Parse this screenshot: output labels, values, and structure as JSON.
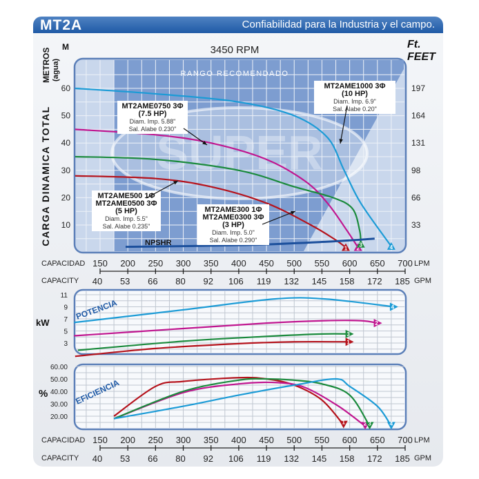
{
  "header": {
    "title": "MT2A",
    "slogan": "Confiabilidad para la Industria y el campo."
  },
  "colors": {
    "c1": "#b5121b",
    "c2": "#c0158f",
    "c3": "#1a8a3c",
    "c4": "#1b9bd6",
    "npshr": "#1b4f9c"
  },
  "chart_data": [
    {
      "type": "line",
      "title": "3450 RPM",
      "ylabel": "CARGA DINAMICA TOTAL",
      "ylabel_left_unit": "METROS (agua)",
      "ylabel_left_short": "M",
      "ylabel_right_unit": "Ft.",
      "ylabel_right_unit2": "FEET",
      "band_label": "RANGO RECOMENDADO",
      "watermark": "SUPER",
      "yticks": [
        10,
        20,
        30,
        40,
        50,
        60
      ],
      "yticks_ft": [
        33,
        66,
        98,
        131,
        164,
        197
      ],
      "ylim": [
        0,
        60
      ],
      "series": [
        {
          "id": "1",
          "color": "#b5121b",
          "points": [
            [
              105,
              28
            ],
            [
              250,
              27
            ],
            [
              350,
              24
            ],
            [
              450,
              18
            ],
            [
              530,
              10
            ],
            [
              575,
              4.5
            ],
            [
              593,
              1.8
            ]
          ]
        },
        {
          "id": "2",
          "color": "#c0158f",
          "points": [
            [
              105,
              45
            ],
            [
              250,
              43
            ],
            [
              350,
              40
            ],
            [
              450,
              34
            ],
            [
              520,
              26
            ],
            [
              560,
              18
            ],
            [
              595,
              8
            ],
            [
              615,
              1.8
            ]
          ]
        },
        {
          "id": "3",
          "color": "#1a8a3c",
          "points": [
            [
              105,
              35
            ],
            [
              250,
              34
            ],
            [
              400,
              30
            ],
            [
              500,
              24
            ],
            [
              570,
              20
            ],
            [
              605,
              16
            ],
            [
              618,
              8
            ],
            [
              620,
              3
            ]
          ]
        },
        {
          "id": "4",
          "color": "#1b9bd6",
          "points": [
            [
              105,
              60
            ],
            [
              250,
              58
            ],
            [
              400,
              55
            ],
            [
              500,
              50
            ],
            [
              560,
              42
            ],
            [
              590,
              30
            ],
            [
              620,
              18
            ],
            [
              675,
              2.2
            ]
          ]
        },
        {
          "id": "npshr",
          "label": "NPSHR",
          "color": "#1b4f9c",
          "points": [
            [
              196,
              2
            ],
            [
              400,
              2.6
            ],
            [
              550,
              3.8
            ],
            [
              645,
              5
            ]
          ]
        }
      ],
      "annotations": [
        {
          "lines": [
            "MT2AME1000 3Φ",
            "(10 HP)",
            "Diam. Imp. 6.9\"",
            "Sal. Alabe 0.20\""
          ]
        },
        {
          "lines": [
            "MT2AME0750 3Φ",
            "(7.5 HP)",
            "Diam. Imp. 5.88\"",
            "Sal. Alabe 0.230\""
          ]
        },
        {
          "lines": [
            "MT2AME500 1Φ",
            "MT2AME0500 3Φ",
            "(5 HP)",
            "Diam. Imp. 5.5\"",
            "Sal. Alabe 0.235\""
          ]
        },
        {
          "lines": [
            "MT2AME300 1Φ",
            "MT2AME0300 3Φ",
            "(3 HP)",
            "Diam. Imp. 5.0\"",
            "Sal. Alabe 0.290\""
          ]
        }
      ]
    },
    {
      "type": "line",
      "title": "POTENCIA",
      "ylabel": "kW",
      "yticks": [
        3,
        5,
        7,
        9,
        11
      ],
      "ylim": [
        0,
        11.5
      ],
      "series": [
        {
          "id": "1",
          "color": "#b5121b",
          "points": [
            [
              105,
              0.8
            ],
            [
              250,
              2.1
            ],
            [
              400,
              2.9
            ],
            [
              500,
              3.2
            ],
            [
              600,
              3.2
            ]
          ]
        },
        {
          "id": "2",
          "color": "#c0158f",
          "points": [
            [
              103,
              4.2
            ],
            [
              300,
              5.4
            ],
            [
              450,
              6.3
            ],
            [
              555,
              6.7
            ],
            [
              620,
              6.7
            ],
            [
              651,
              6.3
            ]
          ]
        },
        {
          "id": "3",
          "color": "#1a8a3c",
          "points": [
            [
              110,
              1.8
            ],
            [
              300,
              3.3
            ],
            [
              450,
              4.1
            ],
            [
              550,
              4.5
            ],
            [
              600,
              4.5
            ]
          ]
        },
        {
          "id": "4",
          "color": "#1b9bd6",
          "points": [
            [
              103,
              6.4
            ],
            [
              300,
              8.5
            ],
            [
              465,
              10.3
            ],
            [
              555,
              10.3
            ],
            [
              680,
              9
            ]
          ]
        }
      ]
    },
    {
      "type": "line",
      "title": "EFICIENCIA",
      "ylabel": "%",
      "yticks": [
        "20.00",
        "30.00",
        "40.00",
        "50.00",
        "60.00"
      ],
      "ylim": [
        10,
        62
      ],
      "series": [
        {
          "id": "1",
          "color": "#b5121b",
          "points": [
            [
              175,
              20
            ],
            [
              250,
              44
            ],
            [
              300,
              48
            ],
            [
              400,
              51
            ],
            [
              450,
              50
            ],
            [
              500,
              45
            ],
            [
              550,
              33
            ],
            [
              589,
              13
            ]
          ]
        },
        {
          "id": "2",
          "color": "#c0158f",
          "points": [
            [
              175,
              18
            ],
            [
              300,
              39
            ],
            [
              400,
              46
            ],
            [
              470,
              47
            ],
            [
              520,
              43
            ],
            [
              580,
              28
            ],
            [
              628,
              12
            ]
          ]
        },
        {
          "id": "3",
          "color": "#1a8a3c",
          "points": [
            [
              175,
              18
            ],
            [
              300,
              40
            ],
            [
              400,
              49
            ],
            [
              450,
              50
            ],
            [
              500,
              49
            ],
            [
              550,
              46
            ],
            [
              600,
              37
            ],
            [
              636,
              12
            ]
          ]
        },
        {
          "id": "4",
          "color": "#1b9bd6",
          "points": [
            [
              175,
              18
            ],
            [
              300,
              28
            ],
            [
              400,
              37
            ],
            [
              500,
              45
            ],
            [
              575,
              50
            ],
            [
              600,
              44
            ],
            [
              650,
              28
            ],
            [
              675,
              12
            ]
          ]
        }
      ]
    }
  ],
  "x_axis": {
    "label_lpm": "CAPACIDAD",
    "label_gpm": "CAPACITY",
    "unit_lpm": "LPM",
    "unit_gpm": "GPM",
    "lpm": [
      150,
      200,
      250,
      300,
      350,
      400,
      450,
      500,
      550,
      600,
      650,
      700
    ],
    "gpm": [
      40,
      53,
      66,
      80,
      92,
      106,
      119,
      132,
      145,
      158,
      172,
      185
    ]
  }
}
